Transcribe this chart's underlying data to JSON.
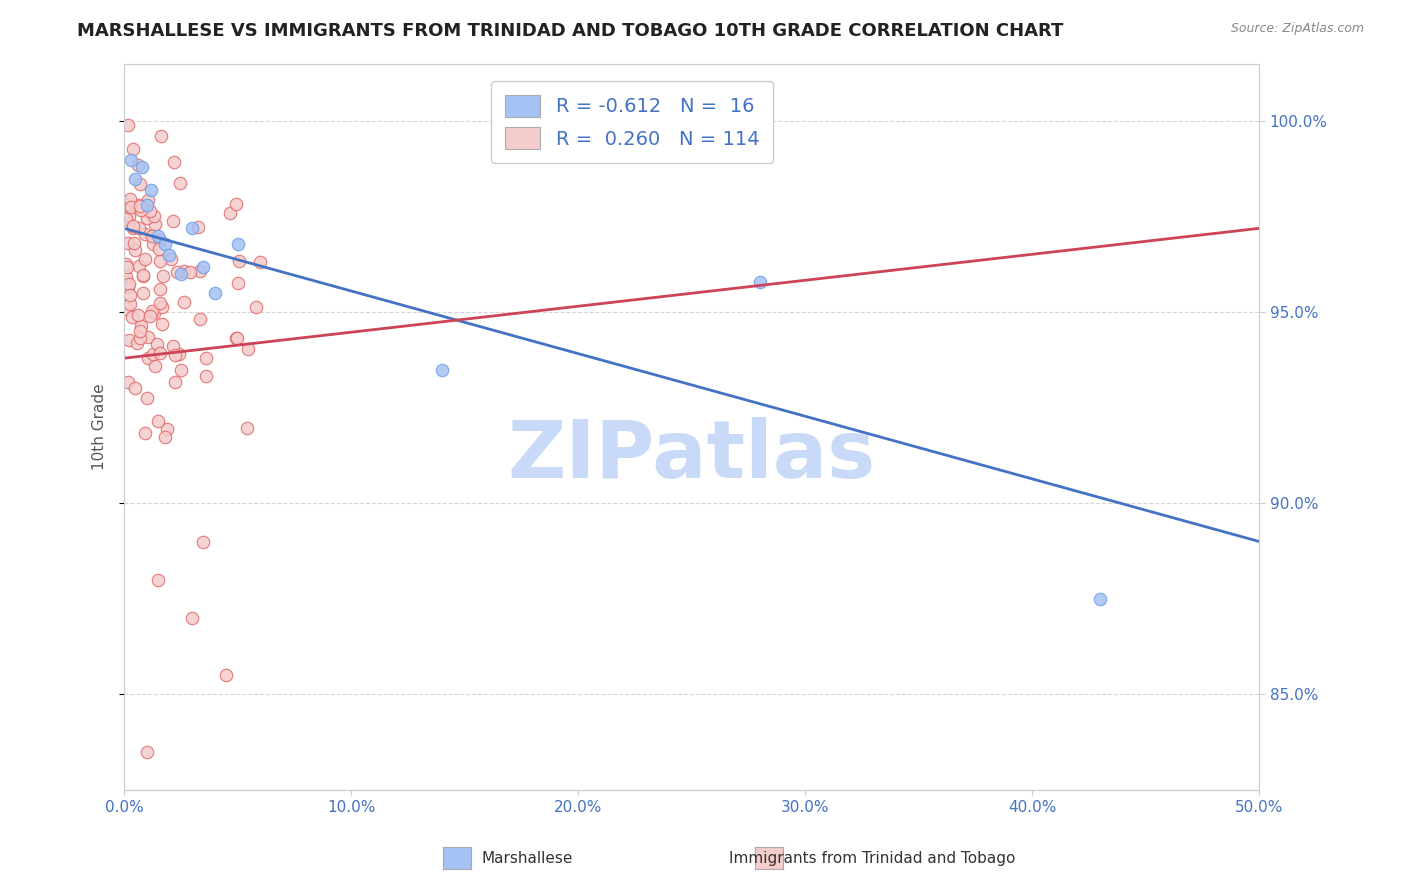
{
  "title": "MARSHALLESE VS IMMIGRANTS FROM TRINIDAD AND TOBAGO 10TH GRADE CORRELATION CHART",
  "source": "Source: ZipAtlas.com",
  "ylabel": "10th Grade",
  "xlim": [
    0.0,
    50.0
  ],
  "ylim": [
    82.5,
    101.5
  ],
  "yticks": [
    85.0,
    90.0,
    95.0,
    100.0
  ],
  "xticks": [
    0.0,
    10.0,
    20.0,
    30.0,
    40.0,
    50.0
  ],
  "blue_color": "#a4c2f4",
  "pink_color": "#f4cccc",
  "blue_edge_color": "#6d9eeb",
  "pink_edge_color": "#e06666",
  "blue_line_color": "#4472c4",
  "pink_line_color": "#cc4455",
  "legend_R1": "-0.612",
  "legend_N1": "16",
  "legend_R2": "0.260",
  "legend_N2": "114",
  "legend_label1": "Marshallese",
  "legend_label2": "Immigrants from Trinidad and Tobago",
  "watermark": "ZIPatlas",
  "watermark_color": "#c9daf8",
  "blue_line_x0": 0.0,
  "blue_line_y0": 97.2,
  "blue_line_x1": 50.0,
  "blue_line_y1": 89.0,
  "pink_line_x0": 0.0,
  "pink_line_y0": 93.8,
  "pink_line_x1": 50.0,
  "pink_line_y1": 97.2,
  "bg_color": "#ffffff",
  "grid_color": "#cccccc",
  "tick_label_color": "#4472c4",
  "title_fontsize": 13,
  "axis_label_fontsize": 11,
  "tick_fontsize": 11,
  "marker_size": 9
}
